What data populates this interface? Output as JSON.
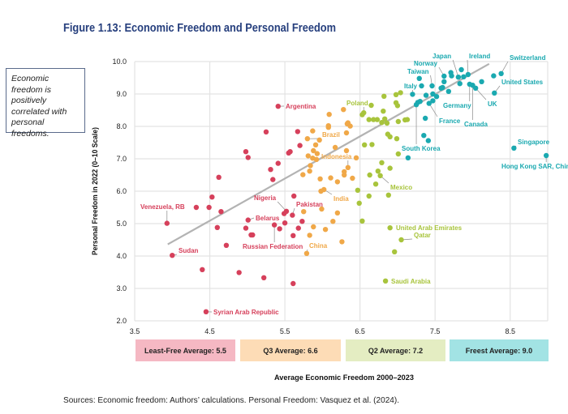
{
  "chart_data": {
    "type": "scatter",
    "title": "Figure 1.13: Economic Freedom and Personal Freedom",
    "xlabel": "Average Economic Freedom 2000–2023",
    "ylabel": "Personal Freedom in 2022 (0–10 Scale)",
    "xlim": [
      3.5,
      9.0
    ],
    "ylim": [
      2.0,
      10.0
    ],
    "xticks": [
      "3.5",
      "4.5",
      "5.5",
      "6.5",
      "7.5",
      "8.5"
    ],
    "yticks": [
      "2.0",
      "3.0",
      "4.0",
      "5.0",
      "6.0",
      "7.0",
      "8.0",
      "9.0",
      "10.0"
    ],
    "grid": true,
    "annotation": "Economic freedom is positively correlated with personal freedoms.",
    "trendline": {
      "from": [
        3.94,
        4.36
      ],
      "to": [
        8.22,
        9.93
      ],
      "color": "#b3b3b3"
    },
    "series": [
      {
        "name": "Least-Free",
        "color": "#d6405b",
        "band_label": "Least-Free Average: 5.5",
        "band_color": "#f5b8c3",
        "points": [
          [
            5.41,
            8.62
          ],
          [
            5.25,
            7.83
          ],
          [
            5.67,
            7.84
          ],
          [
            5.7,
            7.41
          ],
          [
            5.55,
            7.18
          ],
          [
            5.57,
            7.22
          ],
          [
            4.98,
            7.22
          ],
          [
            5.01,
            7.04
          ],
          [
            5.41,
            6.86
          ],
          [
            5.31,
            6.67
          ],
          [
            5.34,
            6.36
          ],
          [
            4.62,
            6.43
          ],
          [
            4.53,
            5.82
          ],
          [
            5.62,
            5.85
          ],
          [
            3.93,
            5.01
          ],
          [
            4.32,
            5.5
          ],
          [
            4.49,
            5.5
          ],
          [
            4.65,
            5.37
          ],
          [
            5.52,
            5.38
          ],
          [
            5.49,
            5.31
          ],
          [
            5.6,
            5.26
          ],
          [
            5.01,
            5.11
          ],
          [
            4.98,
            4.86
          ],
          [
            4.6,
            4.88
          ],
          [
            5.36,
            4.96
          ],
          [
            5.43,
            4.84
          ],
          [
            5.5,
            5.02
          ],
          [
            5.73,
            5.07
          ],
          [
            5.68,
            4.86
          ],
          [
            5.07,
            4.65
          ],
          [
            5.05,
            4.65
          ],
          [
            5.61,
            4.63
          ],
          [
            4.72,
            4.33
          ],
          [
            4.0,
            4.02
          ],
          [
            4.4,
            3.58
          ],
          [
            4.89,
            3.49
          ],
          [
            5.22,
            3.33
          ],
          [
            5.61,
            3.15
          ],
          [
            4.45,
            2.28
          ]
        ]
      },
      {
        "name": "Q3",
        "color": "#f0a848",
        "band_label": "Q3 Average: 6.6",
        "band_color": "#fddcb6",
        "points": [
          [
            6.09,
            8.37
          ],
          [
            6.28,
            8.52
          ],
          [
            6.08,
            8.02
          ],
          [
            6.08,
            7.97
          ],
          [
            5.87,
            7.86
          ],
          [
            5.8,
            7.62
          ],
          [
            5.96,
            7.58
          ],
          [
            5.91,
            7.43
          ],
          [
            5.88,
            7.25
          ],
          [
            5.93,
            7.16
          ],
          [
            6.17,
            7.35
          ],
          [
            5.81,
            7.09
          ],
          [
            5.87,
            7.02
          ],
          [
            5.92,
            6.98
          ],
          [
            5.84,
            6.79
          ],
          [
            5.83,
            6.62
          ],
          [
            5.74,
            6.51
          ],
          [
            5.97,
            6.38
          ],
          [
            6.11,
            6.41
          ],
          [
            6.2,
            6.29
          ],
          [
            5.98,
            6.0
          ],
          [
            6.02,
            6.05
          ],
          [
            6.32,
            7.8
          ],
          [
            6.33,
            8.08
          ],
          [
            6.32,
            7.25
          ],
          [
            6.34,
            8.11
          ],
          [
            6.37,
            8.01
          ],
          [
            6.45,
            7.03
          ],
          [
            6.34,
            6.73
          ],
          [
            6.29,
            6.6
          ],
          [
            6.29,
            6.5
          ],
          [
            6.4,
            6.4
          ],
          [
            5.75,
            5.37
          ],
          [
            5.99,
            5.45
          ],
          [
            6.2,
            5.33
          ],
          [
            6.14,
            5.07
          ],
          [
            5.88,
            4.9
          ],
          [
            6.04,
            4.82
          ],
          [
            5.83,
            4.64
          ],
          [
            6.26,
            4.44
          ],
          [
            5.79,
            4.08
          ]
        ]
      },
      {
        "name": "Q2",
        "color": "#a8c43c",
        "band_label": "Q2 Average: 7.2",
        "band_color": "#e4edc2",
        "points": [
          [
            6.53,
            8.36
          ],
          [
            6.55,
            8.42
          ],
          [
            6.65,
            8.65
          ],
          [
            6.82,
            8.93
          ],
          [
            6.98,
            8.98
          ],
          [
            7.04,
            9.04
          ],
          [
            6.98,
            8.73
          ],
          [
            7.0,
            8.64
          ],
          [
            6.81,
            8.47
          ],
          [
            6.62,
            8.21
          ],
          [
            6.68,
            8.21
          ],
          [
            6.73,
            8.21
          ],
          [
            6.83,
            8.23
          ],
          [
            6.79,
            8.12
          ],
          [
            6.86,
            8.1
          ],
          [
            7.01,
            8.15
          ],
          [
            7.1,
            8.2
          ],
          [
            7.13,
            8.21
          ],
          [
            6.87,
            7.76
          ],
          [
            6.9,
            7.68
          ],
          [
            6.99,
            7.62
          ],
          [
            6.56,
            7.43
          ],
          [
            6.66,
            7.44
          ],
          [
            7.01,
            7.15
          ],
          [
            6.79,
            6.88
          ],
          [
            6.9,
            6.71
          ],
          [
            6.63,
            6.5
          ],
          [
            6.74,
            6.62
          ],
          [
            6.77,
            6.48
          ],
          [
            6.71,
            6.22
          ],
          [
            6.47,
            6.03
          ],
          [
            6.62,
            5.85
          ],
          [
            6.88,
            5.88
          ],
          [
            6.49,
            5.63
          ],
          [
            6.53,
            5.08
          ],
          [
            6.9,
            4.87
          ],
          [
            7.05,
            4.5
          ],
          [
            6.96,
            4.13
          ],
          [
            6.84,
            3.23
          ]
        ]
      },
      {
        "name": "Freest",
        "color": "#1aa9b0",
        "band_label": "Freest Average: 9.0",
        "band_color": "#a2e3e4",
        "points": [
          [
            7.85,
            9.75
          ],
          [
            7.71,
            9.66
          ],
          [
            7.72,
            9.56
          ],
          [
            7.62,
            9.55
          ],
          [
            7.81,
            9.52
          ],
          [
            7.88,
            9.53
          ],
          [
            7.94,
            9.6
          ],
          [
            8.28,
            9.56
          ],
          [
            8.38,
            9.63
          ],
          [
            7.62,
            9.38
          ],
          [
            7.29,
            9.48
          ],
          [
            7.32,
            9.25
          ],
          [
            7.46,
            9.25
          ],
          [
            7.6,
            9.2
          ],
          [
            7.58,
            9.18
          ],
          [
            7.68,
            9.08
          ],
          [
            7.83,
            9.32
          ],
          [
            7.96,
            9.3
          ],
          [
            8.0,
            9.27
          ],
          [
            8.04,
            9.18
          ],
          [
            8.12,
            9.38
          ],
          [
            8.29,
            9.03
          ],
          [
            7.2,
            8.99
          ],
          [
            7.38,
            8.96
          ],
          [
            7.47,
            9.0
          ],
          [
            7.52,
            8.92
          ],
          [
            7.47,
            8.79
          ],
          [
            7.42,
            8.71
          ],
          [
            7.25,
            8.67
          ],
          [
            7.27,
            8.74
          ],
          [
            7.3,
            8.77
          ],
          [
            7.37,
            8.25
          ],
          [
            7.35,
            7.72
          ],
          [
            7.41,
            7.56
          ],
          [
            7.14,
            7.03
          ],
          [
            8.55,
            7.33
          ],
          [
            8.98,
            7.1
          ]
        ]
      }
    ],
    "labels": [
      {
        "text": "Argentina",
        "group": 0,
        "point": [
          5.41,
          8.62
        ]
      },
      {
        "text": "Venezuela, RB",
        "group": 0,
        "point": [
          3.93,
          5.01
        ]
      },
      {
        "text": "Nigeria",
        "group": 0,
        "point": [
          5.52,
          5.38
        ]
      },
      {
        "text": "Pakistan",
        "group": 0,
        "point": [
          5.6,
          5.26
        ]
      },
      {
        "text": "Belarus",
        "group": 0,
        "point": [
          5.01,
          5.11
        ]
      },
      {
        "text": "Russian Federation",
        "group": 0,
        "point": [
          5.36,
          4.96
        ]
      },
      {
        "text": "Sudan",
        "group": 0,
        "point": [
          4.0,
          4.02
        ]
      },
      {
        "text": "Syrian Arab Republic",
        "group": 0,
        "point": [
          4.45,
          2.28
        ]
      },
      {
        "text": "Brazil",
        "group": 1,
        "point": [
          5.8,
          7.62
        ]
      },
      {
        "text": "Indonesia",
        "group": 1,
        "point": [
          6.34,
          6.73
        ]
      },
      {
        "text": "India",
        "group": 1,
        "point": [
          6.02,
          6.05
        ]
      },
      {
        "text": "China",
        "group": 1,
        "point": [
          5.79,
          4.08
        ]
      },
      {
        "text": "Poland",
        "group": 2,
        "point": [
          6.55,
          8.42
        ]
      },
      {
        "text": "Mexico",
        "group": 2,
        "point": [
          6.77,
          6.48
        ]
      },
      {
        "text": "United Arab Emirates",
        "group": 2,
        "point": [
          6.9,
          4.87
        ]
      },
      {
        "text": "Qatar",
        "group": 2,
        "point": [
          7.05,
          4.5
        ]
      },
      {
        "text": "Saudi Arabia",
        "group": 2,
        "point": [
          6.84,
          3.23
        ]
      },
      {
        "text": "Japan",
        "group": 3,
        "point": [
          7.81,
          9.52
        ]
      },
      {
        "text": "Ireland",
        "group": 3,
        "point": [
          7.94,
          9.6
        ]
      },
      {
        "text": "Norway",
        "group": 3,
        "point": [
          7.62,
          9.55
        ]
      },
      {
        "text": "Taiwan",
        "group": 3,
        "point": [
          7.46,
          9.25
        ]
      },
      {
        "text": "Italy",
        "group": 3,
        "point": [
          7.2,
          8.99
        ]
      },
      {
        "text": "Switzerland",
        "group": 3,
        "point": [
          8.38,
          9.63
        ]
      },
      {
        "text": "United States",
        "group": 3,
        "point": [
          8.29,
          9.03
        ]
      },
      {
        "text": "Germany",
        "group": 3,
        "point": [
          7.96,
          9.3
        ]
      },
      {
        "text": "UK",
        "group": 3,
        "point": [
          8.04,
          9.18
        ]
      },
      {
        "text": "Canada",
        "group": 3,
        "point": [
          8.0,
          9.27
        ]
      },
      {
        "text": "France",
        "group": 3,
        "point": [
          7.42,
          8.71
        ]
      },
      {
        "text": "South Korea",
        "group": 3,
        "point": [
          7.25,
          8.67
        ]
      },
      {
        "text": "Singapore",
        "group": 3,
        "point": [
          8.55,
          7.33
        ]
      },
      {
        "text": "Hong Kong SAR, China",
        "group": 3,
        "point": [
          8.98,
          7.1
        ]
      }
    ]
  },
  "source": "Sources: Economic freedom: Authors’ calculations. Personal Freedom: Vasquez et al. (2024)."
}
